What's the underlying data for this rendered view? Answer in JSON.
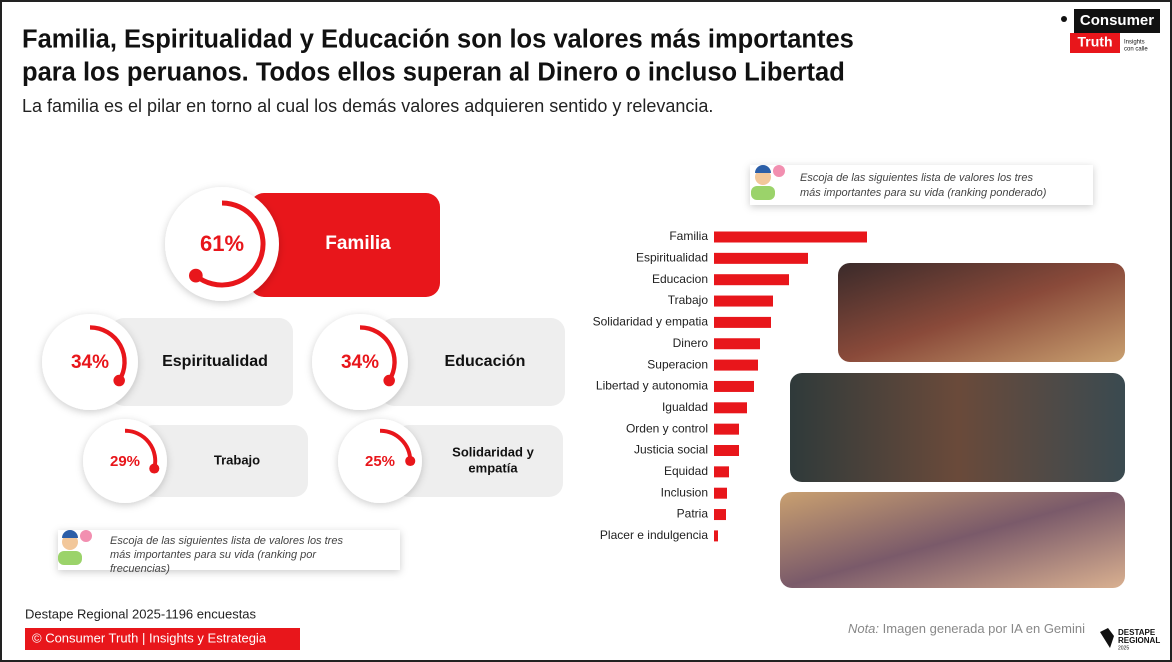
{
  "header": {
    "title_lines": [
      "Familia, Espiritualidad y Educación son los valores más importantes",
      "para los peruanos. Todos ellos superan al Dinero o incluso Libertad"
    ],
    "subtitle": "La familia es el pilar en torno al cual los demás valores adquieren sentido y relevancia."
  },
  "logo": {
    "top": "Consumer",
    "bottom": "Truth",
    "tagline_lines": [
      "Insights",
      "con calle"
    ]
  },
  "cards": [
    {
      "value": 61,
      "value_label": "61%",
      "label_lines": [
        "Familia"
      ],
      "color": "#e8161b"
    },
    {
      "value": 34,
      "value_label": "34%",
      "label_lines": [
        "Espiritualidad"
      ],
      "color": "#e8161b"
    },
    {
      "value": 34,
      "value_label": "34%",
      "label_lines": [
        "Educación"
      ],
      "color": "#e8161b"
    },
    {
      "value": 29,
      "value_label": "29%",
      "label_lines": [
        "Trabajo"
      ],
      "color": "#e8161b"
    },
    {
      "value": 25,
      "value_label": "25%",
      "label_lines": [
        "Solidaridad y",
        "empatía"
      ],
      "color": "#e8161b"
    }
  ],
  "left_note_lines": [
    "Escoja de las siguientes lista de valores los tres",
    "más importantes para su vida (ranking por",
    "frecuencias)"
  ],
  "chart_data": {
    "type": "hbar",
    "note_lines": [
      "Escoja de las siguientes lista de valores los tres",
      "más importantes para su vida (ranking ponderado)"
    ],
    "categories": [
      "Familia",
      "Espiritualidad",
      "Educacion",
      "Trabajo",
      "Solidaridad y empatia",
      "Dinero",
      "Superacion",
      "Libertad y autonomia",
      "Igualdad",
      "Orden y control",
      "Justicia social",
      "Equidad",
      "Inclusion",
      "Patria",
      "Placer e indulgencia"
    ],
    "values": [
      153,
      94,
      75,
      59,
      57,
      46,
      44,
      40,
      33,
      25,
      25,
      15,
      13,
      12,
      4
    ],
    "color": "#e8161b"
  },
  "footer": {
    "source": "Destape Regional 2025-1196 encuestas",
    "copyright": "© Consumer Truth | Insights y Estrategia",
    "note_prefix": "Nota:",
    "note_text": " Imagen generada por IA en Gemini",
    "brand_lines": [
      "DESTAPE",
      "REGIONAL",
      "2025"
    ]
  }
}
